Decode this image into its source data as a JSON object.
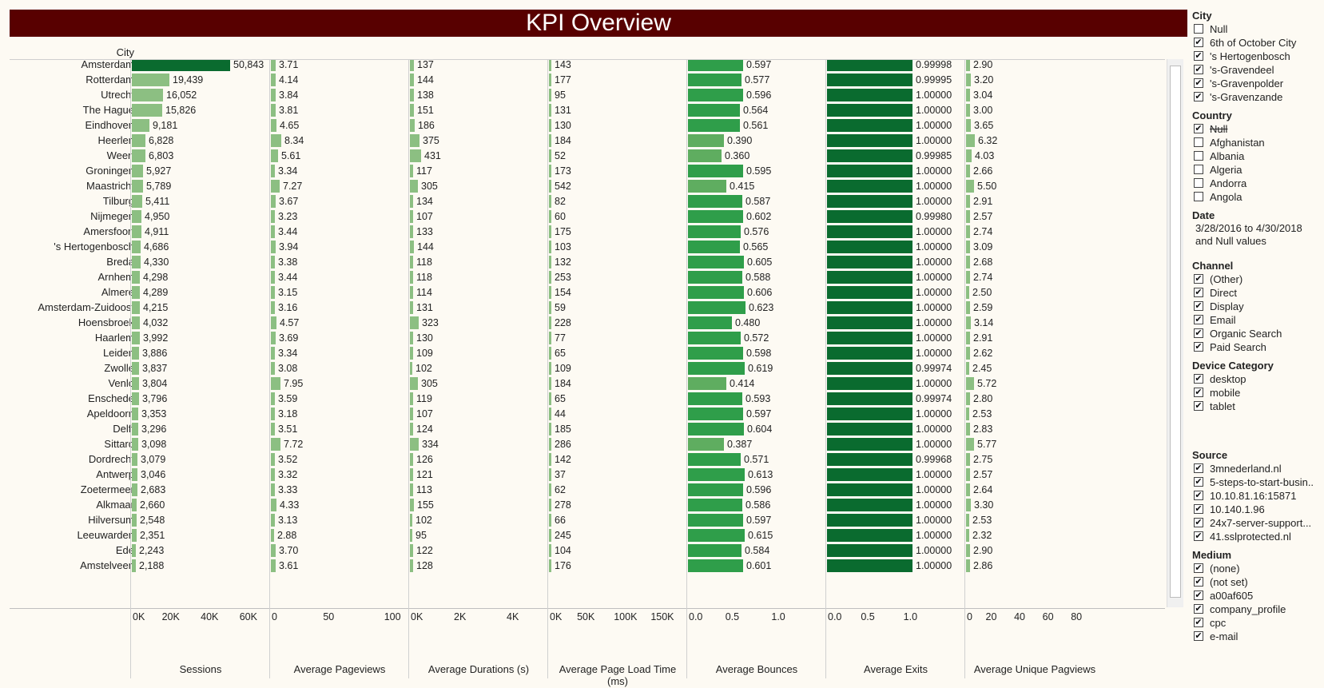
{
  "title": "KPI Overview",
  "city_header": "City",
  "colors": {
    "title_bg": "#580000",
    "bar_dark": "#0a6b2f",
    "bar_mid": "#2f9e4a",
    "bar_light": "#8cbf82",
    "bar_bounce_low": "#5fad60"
  },
  "columns": [
    {
      "key": "sessions",
      "title": "Sessions",
      "max": 70000,
      "ticks": [
        {
          "v": 0,
          "t": "0K"
        },
        {
          "v": 20000,
          "t": "20K"
        },
        {
          "v": 40000,
          "t": "40K"
        },
        {
          "v": 60000,
          "t": "60K"
        }
      ]
    },
    {
      "key": "pageviews",
      "title": "Average Pageviews",
      "max": 110,
      "ticks": [
        {
          "v": 0,
          "t": "0"
        },
        {
          "v": 50,
          "t": "50"
        },
        {
          "v": 100,
          "t": "100"
        }
      ]
    },
    {
      "key": "durations",
      "title": "Average Durations (s)",
      "max": 5000,
      "ticks": [
        {
          "v": 0,
          "t": "0K"
        },
        {
          "v": 2000,
          "t": "2K"
        },
        {
          "v": 4000,
          "t": "4K"
        }
      ]
    },
    {
      "key": "loadtime",
      "title": "Average Page Load Time (ms)",
      "max": 180000,
      "ticks": [
        {
          "v": 0,
          "t": "0K"
        },
        {
          "v": 50000,
          "t": "50K"
        },
        {
          "v": 100000,
          "t": "100K"
        },
        {
          "v": 150000,
          "t": "150K"
        }
      ]
    },
    {
      "key": "bounces",
      "title": "Average Bounces",
      "max": 1.3,
      "ticks": [
        {
          "v": 0,
          "t": "0.0"
        },
        {
          "v": 0.5,
          "t": "0.5"
        },
        {
          "v": 1,
          "t": "1.0"
        }
      ]
    },
    {
      "key": "exits",
      "title": "Average Exits",
      "max": 1.5,
      "ticks": [
        {
          "v": 0,
          "t": "0.0"
        },
        {
          "v": 0.5,
          "t": "0.5"
        },
        {
          "v": 1,
          "t": "1.0"
        }
      ]
    },
    {
      "key": "unique",
      "title": "Average Unique Pagviews",
      "max": 90,
      "ticks": [
        {
          "v": 0,
          "t": "0"
        },
        {
          "v": 20,
          "t": "20"
        },
        {
          "v": 40,
          "t": "40"
        },
        {
          "v": 60,
          "t": "60"
        },
        {
          "v": 80,
          "t": "80"
        }
      ]
    }
  ],
  "rows": [
    {
      "city": "Amsterdam",
      "sessions": "50,843",
      "pageviews": "3.71",
      "durations": "137",
      "loadtime": "143",
      "bounces": "0.597",
      "exits": "0.99998",
      "unique": "2.90"
    },
    {
      "city": "Rotterdam",
      "sessions": "19,439",
      "pageviews": "4.14",
      "durations": "144",
      "loadtime": "177",
      "bounces": "0.577",
      "exits": "0.99995",
      "unique": "3.20"
    },
    {
      "city": "Utrecht",
      "sessions": "16,052",
      "pageviews": "3.84",
      "durations": "138",
      "loadtime": "95",
      "bounces": "0.596",
      "exits": "1.00000",
      "unique": "3.04"
    },
    {
      "city": "The Hague",
      "sessions": "15,826",
      "pageviews": "3.81",
      "durations": "151",
      "loadtime": "131",
      "bounces": "0.564",
      "exits": "1.00000",
      "unique": "3.00"
    },
    {
      "city": "Eindhoven",
      "sessions": "9,181",
      "pageviews": "4.65",
      "durations": "186",
      "loadtime": "130",
      "bounces": "0.561",
      "exits": "1.00000",
      "unique": "3.65"
    },
    {
      "city": "Heerlen",
      "sessions": "6,828",
      "pageviews": "8.34",
      "durations": "375",
      "loadtime": "184",
      "bounces": "0.390",
      "exits": "1.00000",
      "unique": "6.32"
    },
    {
      "city": "Weert",
      "sessions": "6,803",
      "pageviews": "5.61",
      "durations": "431",
      "loadtime": "52",
      "bounces": "0.360",
      "exits": "0.99985",
      "unique": "4.03"
    },
    {
      "city": "Groningen",
      "sessions": "5,927",
      "pageviews": "3.34",
      "durations": "117",
      "loadtime": "173",
      "bounces": "0.595",
      "exits": "1.00000",
      "unique": "2.66"
    },
    {
      "city": "Maastricht",
      "sessions": "5,789",
      "pageviews": "7.27",
      "durations": "305",
      "loadtime": "542",
      "bounces": "0.415",
      "exits": "1.00000",
      "unique": "5.50"
    },
    {
      "city": "Tilburg",
      "sessions": "5,411",
      "pageviews": "3.67",
      "durations": "134",
      "loadtime": "82",
      "bounces": "0.587",
      "exits": "1.00000",
      "unique": "2.91"
    },
    {
      "city": "Nijmegen",
      "sessions": "4,950",
      "pageviews": "3.23",
      "durations": "107",
      "loadtime": "60",
      "bounces": "0.602",
      "exits": "0.99980",
      "unique": "2.57"
    },
    {
      "city": "Amersfoort",
      "sessions": "4,911",
      "pageviews": "3.44",
      "durations": "133",
      "loadtime": "175",
      "bounces": "0.576",
      "exits": "1.00000",
      "unique": "2.74"
    },
    {
      "city": "'s Hertogenbosch",
      "sessions": "4,686",
      "pageviews": "3.94",
      "durations": "144",
      "loadtime": "103",
      "bounces": "0.565",
      "exits": "1.00000",
      "unique": "3.09"
    },
    {
      "city": "Breda",
      "sessions": "4,330",
      "pageviews": "3.38",
      "durations": "118",
      "loadtime": "132",
      "bounces": "0.605",
      "exits": "1.00000",
      "unique": "2.68"
    },
    {
      "city": "Arnhem",
      "sessions": "4,298",
      "pageviews": "3.44",
      "durations": "118",
      "loadtime": "253",
      "bounces": "0.588",
      "exits": "1.00000",
      "unique": "2.74"
    },
    {
      "city": "Almere",
      "sessions": "4,289",
      "pageviews": "3.15",
      "durations": "114",
      "loadtime": "154",
      "bounces": "0.606",
      "exits": "1.00000",
      "unique": "2.50"
    },
    {
      "city": "Amsterdam-Zuidoost",
      "sessions": "4,215",
      "pageviews": "3.16",
      "durations": "131",
      "loadtime": "59",
      "bounces": "0.623",
      "exits": "1.00000",
      "unique": "2.59"
    },
    {
      "city": "Hoensbroek",
      "sessions": "4,032",
      "pageviews": "4.57",
      "durations": "323",
      "loadtime": "228",
      "bounces": "0.480",
      "exits": "1.00000",
      "unique": "3.14"
    },
    {
      "city": "Haarlem",
      "sessions": "3,992",
      "pageviews": "3.69",
      "durations": "130",
      "loadtime": "77",
      "bounces": "0.572",
      "exits": "1.00000",
      "unique": "2.91"
    },
    {
      "city": "Leiden",
      "sessions": "3,886",
      "pageviews": "3.34",
      "durations": "109",
      "loadtime": "65",
      "bounces": "0.598",
      "exits": "1.00000",
      "unique": "2.62"
    },
    {
      "city": "Zwolle",
      "sessions": "3,837",
      "pageviews": "3.08",
      "durations": "102",
      "loadtime": "109",
      "bounces": "0.619",
      "exits": "0.99974",
      "unique": "2.45"
    },
    {
      "city": "Venlo",
      "sessions": "3,804",
      "pageviews": "7.95",
      "durations": "305",
      "loadtime": "184",
      "bounces": "0.414",
      "exits": "1.00000",
      "unique": "5.72"
    },
    {
      "city": "Enschede",
      "sessions": "3,796",
      "pageviews": "3.59",
      "durations": "119",
      "loadtime": "65",
      "bounces": "0.593",
      "exits": "0.99974",
      "unique": "2.80"
    },
    {
      "city": "Apeldoorn",
      "sessions": "3,353",
      "pageviews": "3.18",
      "durations": "107",
      "loadtime": "44",
      "bounces": "0.597",
      "exits": "1.00000",
      "unique": "2.53"
    },
    {
      "city": "Delft",
      "sessions": "3,296",
      "pageviews": "3.51",
      "durations": "124",
      "loadtime": "185",
      "bounces": "0.604",
      "exits": "1.00000",
      "unique": "2.83"
    },
    {
      "city": "Sittard",
      "sessions": "3,098",
      "pageviews": "7.72",
      "durations": "334",
      "loadtime": "286",
      "bounces": "0.387",
      "exits": "1.00000",
      "unique": "5.77"
    },
    {
      "city": "Dordrecht",
      "sessions": "3,079",
      "pageviews": "3.52",
      "durations": "126",
      "loadtime": "142",
      "bounces": "0.571",
      "exits": "0.99968",
      "unique": "2.75"
    },
    {
      "city": "Antwerp",
      "sessions": "3,046",
      "pageviews": "3.32",
      "durations": "121",
      "loadtime": "37",
      "bounces": "0.613",
      "exits": "1.00000",
      "unique": "2.57"
    },
    {
      "city": "Zoetermeer",
      "sessions": "2,683",
      "pageviews": "3.33",
      "durations": "113",
      "loadtime": "62",
      "bounces": "0.596",
      "exits": "1.00000",
      "unique": "2.64"
    },
    {
      "city": "Alkmaar",
      "sessions": "2,660",
      "pageviews": "4.33",
      "durations": "155",
      "loadtime": "278",
      "bounces": "0.586",
      "exits": "1.00000",
      "unique": "3.30"
    },
    {
      "city": "Hilversum",
      "sessions": "2,548",
      "pageviews": "3.13",
      "durations": "102",
      "loadtime": "66",
      "bounces": "0.597",
      "exits": "1.00000",
      "unique": "2.53"
    },
    {
      "city": "Leeuwarden",
      "sessions": "2,351",
      "pageviews": "2.88",
      "durations": "95",
      "loadtime": "245",
      "bounces": "0.615",
      "exits": "1.00000",
      "unique": "2.32"
    },
    {
      "city": "Ede",
      "sessions": "2,243",
      "pageviews": "3.70",
      "durations": "122",
      "loadtime": "104",
      "bounces": "0.584",
      "exits": "1.00000",
      "unique": "2.90"
    },
    {
      "city": "Amstelveen",
      "sessions": "2,188",
      "pageviews": "3.61",
      "durations": "128",
      "loadtime": "176",
      "bounces": "0.601",
      "exits": "1.00000",
      "unique": "2.86"
    }
  ],
  "filters": {
    "city": {
      "title": "City",
      "items": [
        {
          "label": "Null",
          "checked": false
        },
        {
          "label": "6th of October City",
          "checked": true
        },
        {
          "label": "'s Hertogenbosch",
          "checked": true
        },
        {
          "label": "'s-Gravendeel",
          "checked": true
        },
        {
          "label": "'s-Gravenpolder",
          "checked": true
        },
        {
          "label": "'s-Gravenzande",
          "checked": true
        }
      ]
    },
    "country": {
      "title": "Country",
      "items": [
        {
          "label": "Null",
          "checked": true,
          "strike": true
        },
        {
          "label": "Afghanistan",
          "checked": false
        },
        {
          "label": "Albania",
          "checked": false
        },
        {
          "label": "Algeria",
          "checked": false
        },
        {
          "label": "Andorra",
          "checked": false
        },
        {
          "label": "Angola",
          "checked": false
        }
      ]
    },
    "date": {
      "title": "Date",
      "line1": "3/28/2016 to 4/30/2018",
      "line2": "and Null values"
    },
    "channel": {
      "title": "Channel",
      "items": [
        {
          "label": "(Other)",
          "checked": true
        },
        {
          "label": "Direct",
          "checked": true
        },
        {
          "label": "Display",
          "checked": true
        },
        {
          "label": "Email",
          "checked": true
        },
        {
          "label": "Organic Search",
          "checked": true
        },
        {
          "label": "Paid Search",
          "checked": true
        }
      ]
    },
    "device": {
      "title": "Device Category",
      "items": [
        {
          "label": "desktop",
          "checked": true
        },
        {
          "label": "mobile",
          "checked": true
        },
        {
          "label": "tablet",
          "checked": true
        }
      ]
    },
    "source": {
      "title": "Source",
      "items": [
        {
          "label": "3mnederland.nl",
          "checked": true
        },
        {
          "label": "5-steps-to-start-busin..",
          "checked": true
        },
        {
          "label": "10.10.81.16:15871",
          "checked": true
        },
        {
          "label": "10.140.1.96",
          "checked": true
        },
        {
          "label": "24x7-server-support...",
          "checked": true
        },
        {
          "label": "41.sslprotected.nl",
          "checked": true
        }
      ]
    },
    "medium": {
      "title": "Medium",
      "items": [
        {
          "label": "(none)",
          "checked": true
        },
        {
          "label": "(not set)",
          "checked": true
        },
        {
          "label": "a00af605",
          "checked": true
        },
        {
          "label": "company_profile",
          "checked": true
        },
        {
          "label": "cpc",
          "checked": true
        },
        {
          "label": "e-mail",
          "checked": true
        }
      ]
    }
  }
}
